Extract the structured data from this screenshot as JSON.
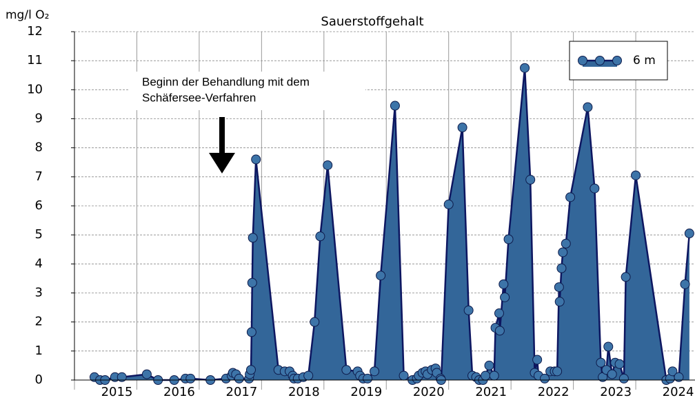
{
  "chart_data": {
    "type": "area",
    "title": "Sauerstoffgehalt",
    "y_label": "mg/l O₂",
    "annotation": [
      "Beginn der Behandlung mit dem",
      "Schäfersee-Verfahren"
    ],
    "xlim": [
      2015,
      2024.95
    ],
    "xticks": [
      2015,
      2016,
      2017,
      2018,
      2019,
      2020,
      2021,
      2022,
      2023,
      2024
    ],
    "ylim": [
      0,
      12
    ],
    "yticks": [
      0,
      1,
      2,
      3,
      4,
      5,
      6,
      7,
      8,
      9,
      10,
      11,
      12
    ],
    "grid": true,
    "legend": "upper right",
    "series": [
      {
        "name": "6 m",
        "color": "#336699",
        "line_color": "#0d1660",
        "x": [
          2015.32,
          2015.41,
          2015.49,
          2015.65,
          2015.76,
          2016.16,
          2016.34,
          2016.6,
          2016.78,
          2016.86,
          2017.18,
          2017.43,
          2017.52,
          2017.54,
          2017.59,
          2017.64,
          2017.8,
          2017.81,
          2017.83,
          2017.84,
          2017.85,
          2017.86,
          2017.91,
          2018.27,
          2018.37,
          2018.45,
          2018.5,
          2018.52,
          2018.58,
          2018.67,
          2018.75,
          2018.85,
          2018.94,
          2019.06,
          2019.36,
          2019.54,
          2019.58,
          2019.63,
          2019.7,
          2019.81,
          2019.91,
          2020.14,
          2020.28,
          2020.42,
          2020.49,
          2020.52,
          2020.58,
          2020.63,
          2020.66,
          2020.73,
          2020.79,
          2020.81,
          2020.87,
          2020.88,
          2021.0,
          2021.22,
          2021.32,
          2021.38,
          2021.44,
          2021.49,
          2021.55,
          2021.59,
          2021.65,
          2021.73,
          2021.75,
          2021.81,
          2021.82,
          2021.88,
          2021.9,
          2021.96,
          2022.22,
          2022.31,
          2022.38,
          2022.42,
          2022.44,
          2022.54,
          2022.63,
          2022.7,
          2022.74,
          2022.77,
          2022.78,
          2022.81,
          2022.83,
          2022.88,
          2022.95,
          2023.23,
          2023.34,
          2023.44,
          2023.47,
          2023.53,
          2023.56,
          2023.62,
          2023.67,
          2023.74,
          2023.81,
          2023.84,
          2024.0,
          2024.49,
          2024.55,
          2024.59,
          2024.69,
          2024.79,
          2024.86
        ],
        "values": [
          0.1,
          0.0,
          0.0,
          0.1,
          0.1,
          0.2,
          0.0,
          0.0,
          0.05,
          0.05,
          0.0,
          0.05,
          0.15,
          0.25,
          0.2,
          0.05,
          0.05,
          0.2,
          0.35,
          1.65,
          3.35,
          4.9,
          7.6,
          0.35,
          0.3,
          0.3,
          0.15,
          0.05,
          0.05,
          0.1,
          0.15,
          2.0,
          4.95,
          7.4,
          0.35,
          0.3,
          0.15,
          0.05,
          0.05,
          0.3,
          3.6,
          9.45,
          0.15,
          0.0,
          0.05,
          0.15,
          0.25,
          0.3,
          0.2,
          0.35,
          0.4,
          0.25,
          0.05,
          0.0,
          6.05,
          8.7,
          2.4,
          0.15,
          0.1,
          0.0,
          0.0,
          0.15,
          0.5,
          0.15,
          1.8,
          2.3,
          1.7,
          3.3,
          2.85,
          4.85,
          10.75,
          6.9,
          0.25,
          0.7,
          0.15,
          0.05,
          0.3,
          0.3,
          0.3,
          3.2,
          2.7,
          3.85,
          4.4,
          4.7,
          6.3,
          9.4,
          6.6,
          0.6,
          0.1,
          0.35,
          1.15,
          0.2,
          0.6,
          0.55,
          0.05,
          3.55,
          7.05,
          0.0,
          0.05,
          0.3,
          0.1,
          3.3,
          5.05
        ]
      }
    ]
  }
}
